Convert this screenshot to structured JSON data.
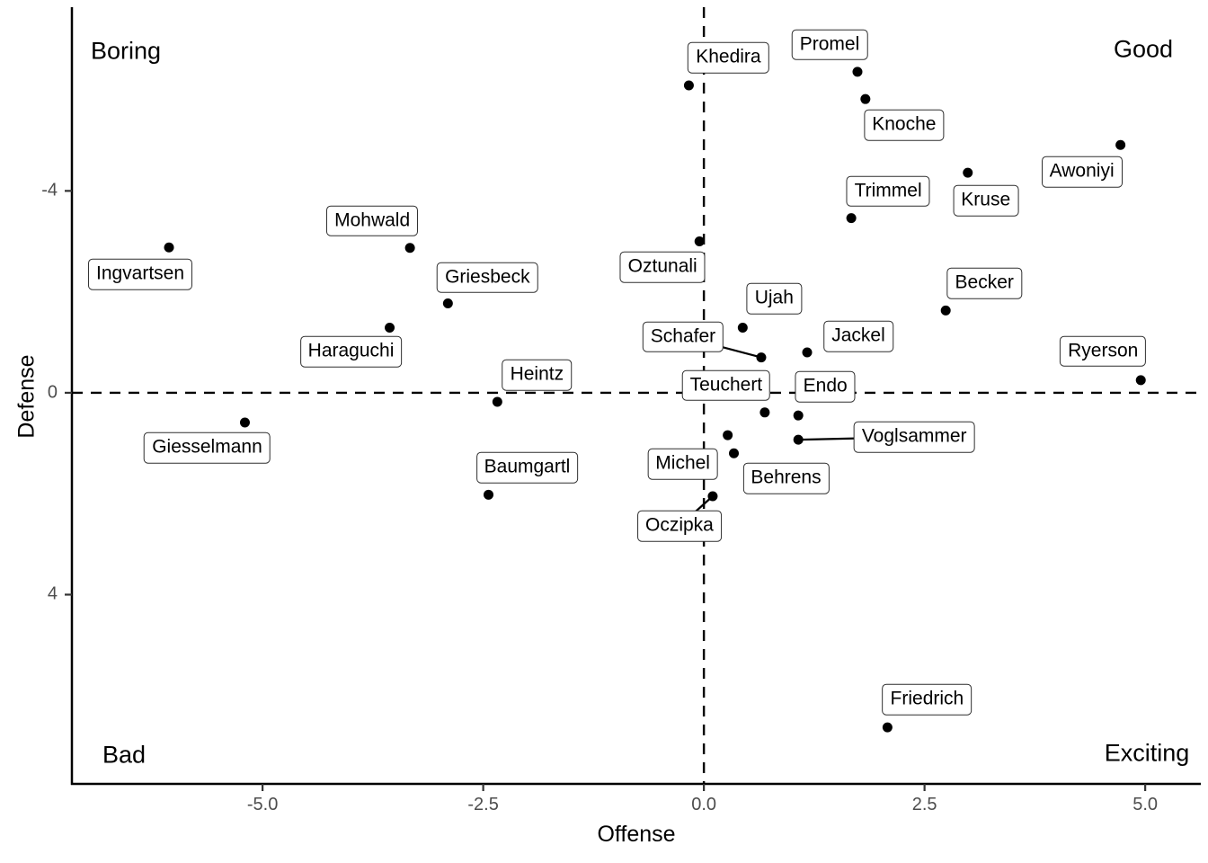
{
  "chart_data": {
    "type": "scatter",
    "title": "",
    "x_axis": {
      "title": "Offense",
      "ticks": [
        "-5.0",
        "-2.5",
        "0.0",
        "2.5",
        "5.0"
      ],
      "tick_values": [
        -5.0,
        -2.5,
        0.0,
        2.5,
        5.0
      ],
      "range": [
        -7.16,
        5.63
      ]
    },
    "y_axis": {
      "title": "Defense",
      "ticks": [
        "-4",
        "0",
        "4"
      ],
      "tick_values": [
        -4,
        0,
        4
      ],
      "range": [
        -7.64,
        7.75
      ],
      "reversed": true
    },
    "reference_lines": {
      "vertical_x": 0,
      "horizontal_y": 0,
      "style": "dashed"
    },
    "quadrant_labels": {
      "top_left": "Boring",
      "top_right": "Good",
      "bottom_left": "Bad",
      "bottom_right": "Exciting"
    },
    "grid": false,
    "legend": "none",
    "colors": {
      "point": "#000000",
      "label_border": "#2f2f2f",
      "label_bg": "#ffffff",
      "axis": "#000000",
      "tick_text": "#4d4d4d",
      "dashed_line": "#000000"
    },
    "points": [
      {
        "name": "Ingvartsen",
        "x": -6.06,
        "y": -2.88,
        "label_offset": [
          -32,
          30
        ],
        "connector": false
      },
      {
        "name": "Giesselmann",
        "x": -5.2,
        "y": 0.59,
        "label_offset": [
          -42,
          28
        ],
        "connector": false
      },
      {
        "name": "Haraguchi",
        "x": -3.56,
        "y": -1.29,
        "label_offset": [
          -43,
          27
        ],
        "connector": false
      },
      {
        "name": "Mohwald",
        "x": -3.33,
        "y": -2.87,
        "label_offset": [
          -42,
          -30
        ],
        "connector": false
      },
      {
        "name": "Griesbeck",
        "x": -2.9,
        "y": -1.77,
        "label_offset": [
          44,
          -29
        ],
        "connector": false
      },
      {
        "name": "Baumgartl",
        "x": -2.44,
        "y": 2.02,
        "label_offset": [
          43,
          -30
        ],
        "connector": false
      },
      {
        "name": "Heintz",
        "x": -2.34,
        "y": 0.18,
        "label_offset": [
          44,
          -30
        ],
        "connector": false
      },
      {
        "name": "Khedira",
        "x": -0.17,
        "y": -6.09,
        "label_offset": [
          44,
          -31
        ],
        "connector": false
      },
      {
        "name": "Oztunali",
        "x": -0.05,
        "y": -3.0,
        "label_offset": [
          -41,
          29
        ],
        "connector": false
      },
      {
        "name": "Oczipka",
        "x": 0.1,
        "y": 2.05,
        "label_offset": [
          -37,
          33
        ],
        "connector": true
      },
      {
        "name": "Michel",
        "x": 0.27,
        "y": 0.84,
        "label_offset": [
          -50,
          32
        ],
        "connector": false
      },
      {
        "name": "Behrens",
        "x": 0.34,
        "y": 1.2,
        "label_offset": [
          58,
          28
        ],
        "connector": false
      },
      {
        "name": "Ujah",
        "x": 0.44,
        "y": -1.29,
        "label_offset": [
          35,
          -32
        ],
        "connector": false
      },
      {
        "name": "Schafer",
        "x": 0.65,
        "y": -0.7,
        "label_offset": [
          -87,
          -23
        ],
        "connector": true
      },
      {
        "name": "Teuchert",
        "x": 0.69,
        "y": 0.39,
        "label_offset": [
          -43,
          -30
        ],
        "connector": false
      },
      {
        "name": "Endo",
        "x": 1.07,
        "y": 0.45,
        "label_offset": [
          30,
          -32
        ],
        "connector": false
      },
      {
        "name": "Voglsammer",
        "x": 1.07,
        "y": 0.93,
        "label_offset": [
          129,
          -3
        ],
        "connector": true
      },
      {
        "name": "Jackel",
        "x": 1.17,
        "y": -0.8,
        "label_offset": [
          57,
          -18
        ],
        "connector": false
      },
      {
        "name": "Trimmel",
        "x": 1.67,
        "y": -3.46,
        "label_offset": [
          41,
          -30
        ],
        "connector": false
      },
      {
        "name": "Promel",
        "x": 1.74,
        "y": -6.36,
        "label_offset": [
          -31,
          -30
        ],
        "connector": false
      },
      {
        "name": "Knoche",
        "x": 1.83,
        "y": -5.82,
        "label_offset": [
          43,
          29
        ],
        "connector": false
      },
      {
        "name": "Friedrich",
        "x": 2.08,
        "y": 6.63,
        "label_offset": [
          44,
          -31
        ],
        "connector": false
      },
      {
        "name": "Becker",
        "x": 2.74,
        "y": -1.63,
        "label_offset": [
          43,
          -30
        ],
        "connector": false
      },
      {
        "name": "Kruse",
        "x": 2.99,
        "y": -4.36,
        "label_offset": [
          20,
          31
        ],
        "connector": false
      },
      {
        "name": "Awoniyi",
        "x": 4.72,
        "y": -4.91,
        "label_offset": [
          -43,
          30
        ],
        "connector": false
      },
      {
        "name": "Ryerson",
        "x": 4.95,
        "y": -0.25,
        "label_offset": [
          -42,
          -32
        ],
        "connector": false
      }
    ]
  }
}
